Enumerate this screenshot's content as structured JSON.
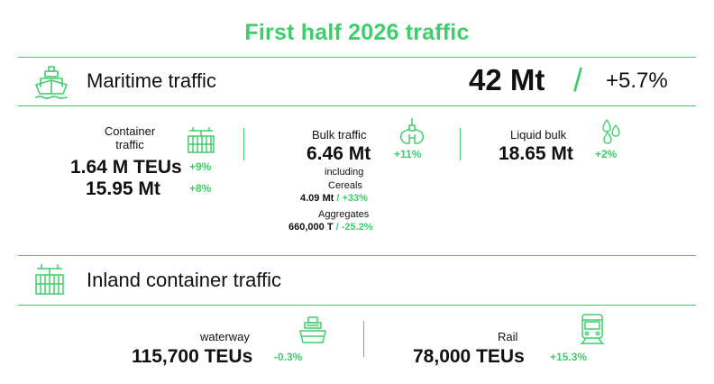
{
  "title": "First half 2026 traffic",
  "colors": {
    "accent": "#3fcd6b",
    "text": "#111111"
  },
  "maritime": {
    "icon": "ship-icon",
    "title": "Maritime traffic",
    "total": "42 Mt",
    "separator": "/",
    "change": "+5.7%",
    "container": {
      "icon": "container-crane-icon",
      "label_line1": "Container",
      "label_line2": "traffic",
      "teus": "1.64 M TEUs",
      "teus_change": "+9%",
      "tonnage": "15.95 Mt",
      "tonnage_change": "+8%"
    },
    "bulk": {
      "icon": "grab-bucket-icon",
      "label": "Bulk traffic",
      "value": "6.46 Mt",
      "change": "+11%",
      "including": "including",
      "cereals_label": "Cereals",
      "cereals_value": "4.09 Mt",
      "cereals_sep": "/",
      "cereals_change": "+33%",
      "aggregates_label": "Aggregates",
      "aggregates_value": "660,000 T",
      "aggregates_sep": "/",
      "aggregates_change": "-25.2%"
    },
    "liquid": {
      "icon": "liquid-drops-icon",
      "label": "Liquid bulk",
      "value": "18.65 Mt",
      "change": "+2%"
    }
  },
  "inland": {
    "icon": "container-icon",
    "title": "Inland container traffic",
    "waterway": {
      "icon": "barge-icon",
      "label": "waterway",
      "value": "115,700 TEUs",
      "change": "-0.3%"
    },
    "rail": {
      "icon": "train-icon",
      "label": "Rail",
      "value": "78,000 TEUs",
      "change": "+15.3%"
    }
  }
}
